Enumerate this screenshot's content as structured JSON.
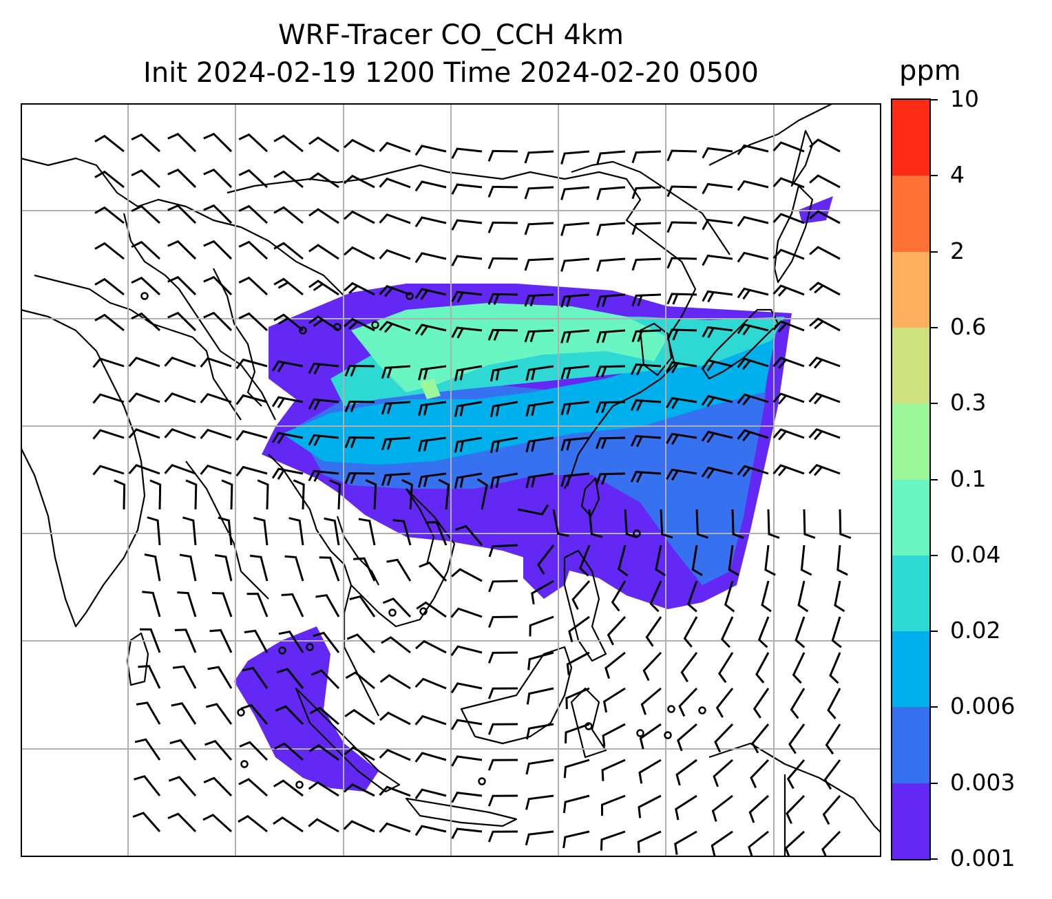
{
  "title": {
    "line1": "WRF-Tracer CO_CCH 4km",
    "line2": "Init 2024-02-19 1200 Time 2024-02-20 0500"
  },
  "colorbar": {
    "unit": "ppm",
    "levels": [
      "0.001",
      "0.003",
      "0.006",
      "0.02",
      "0.04",
      "0.1",
      "0.3",
      "0.6",
      "2",
      "4",
      "10"
    ],
    "colors": [
      "#6428f5",
      "#3672f0",
      "#00b0ec",
      "#2fd9d3",
      "#6af6c3",
      "#9cf79b",
      "#cfe081",
      "#fcb05e",
      "#fe7238",
      "#fe2c16"
    ]
  },
  "map": {
    "projection": "regional, East & Southeast Asia",
    "tracer_field": "CO_CCH",
    "wind_symbol": "wind barbs"
  }
}
